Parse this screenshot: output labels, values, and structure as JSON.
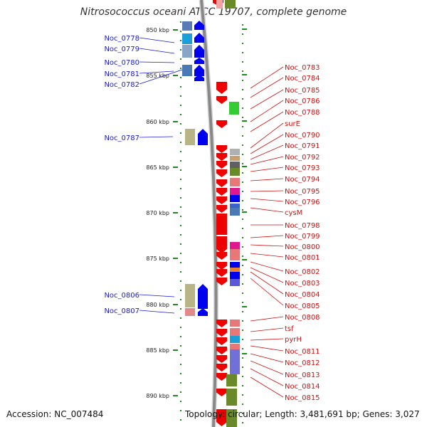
{
  "title": "Nitrosococcus oceani ATCC 19707, complete genome",
  "footer": {
    "accession": "Accession: NC_007484",
    "summary": "Topology: circular; Length: 3,481,691 bp; Genes: 3,027"
  },
  "axis": {
    "ticks": [
      "850 kbp",
      "855 kbp",
      "860 kbp",
      "865 kbp",
      "870 kbp",
      "875 kbp",
      "880 kbp",
      "885 kbp",
      "890 kbp"
    ]
  },
  "left_labels": [
    "Noc_0778",
    "Noc_0779",
    "Noc_0780",
    "Noc_0781",
    "Noc_0782",
    "Noc_0787",
    "Noc_0806",
    "Noc_0807"
  ],
  "right_labels": [
    "Noc_0783",
    "Noc_0784",
    "Noc_0785",
    "Noc_0786",
    "Noc_0788",
    "surE",
    "Noc_0790",
    "Noc_0791",
    "Noc_0792",
    "Noc_0793",
    "Noc_0794",
    "Noc_0795",
    "Noc_0796",
    "cysM",
    "Noc_0798",
    "Noc_0799",
    "Noc_0800",
    "Noc_0801",
    "Noc_0802",
    "Noc_0803",
    "Noc_0804",
    "Noc_0805",
    "Noc_0808",
    "tsf",
    "pyrH",
    "Noc_0811",
    "Noc_0812",
    "Noc_0813",
    "Noc_0814",
    "Noc_0815"
  ],
  "colors": {
    "forward_gene": "#0000ee",
    "reverse_gene": "#ee0000",
    "tick": "#228822",
    "left_label": "#1a1ad0",
    "right_label": "#d01010",
    "backbone": "#888888"
  }
}
